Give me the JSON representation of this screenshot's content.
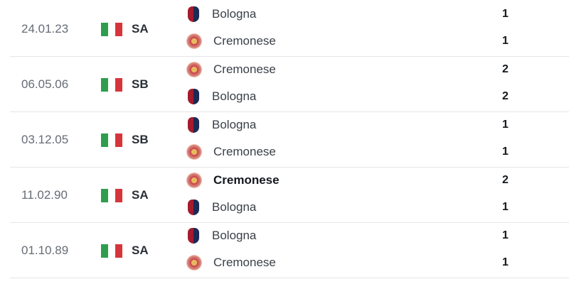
{
  "colors": {
    "flag_green": "#2e9e4e",
    "flag_white": "#ffffff",
    "flag_red": "#d7353c"
  },
  "matches": [
    {
      "date": "24.01.23",
      "country_flag": "italy-flag",
      "competition": "SA",
      "home": {
        "name": "Bologna",
        "logo": "bologna-logo",
        "score": "1"
      },
      "away": {
        "name": "Cremonese",
        "logo": "cremonese-logo",
        "score": "1"
      },
      "winner": ""
    },
    {
      "date": "06.05.06",
      "country_flag": "italy-flag",
      "competition": "SB",
      "home": {
        "name": "Cremonese",
        "logo": "cremonese-logo",
        "score": "2"
      },
      "away": {
        "name": "Bologna",
        "logo": "bologna-logo",
        "score": "2"
      },
      "winner": ""
    },
    {
      "date": "03.12.05",
      "country_flag": "italy-flag",
      "competition": "SB",
      "home": {
        "name": "Bologna",
        "logo": "bologna-logo",
        "score": "1"
      },
      "away": {
        "name": "Cremonese",
        "logo": "cremonese-logo",
        "score": "1"
      },
      "winner": ""
    },
    {
      "date": "11.02.90",
      "country_flag": "italy-flag",
      "competition": "SA",
      "home": {
        "name": "Cremonese",
        "logo": "cremonese-logo",
        "score": "2"
      },
      "away": {
        "name": "Bologna",
        "logo": "bologna-logo",
        "score": "1"
      },
      "winner": "home"
    },
    {
      "date": "01.10.89",
      "country_flag": "italy-flag",
      "competition": "SA",
      "home": {
        "name": "Bologna",
        "logo": "bologna-logo",
        "score": "1"
      },
      "away": {
        "name": "Cremonese",
        "logo": "cremonese-logo",
        "score": "1"
      },
      "winner": ""
    }
  ]
}
